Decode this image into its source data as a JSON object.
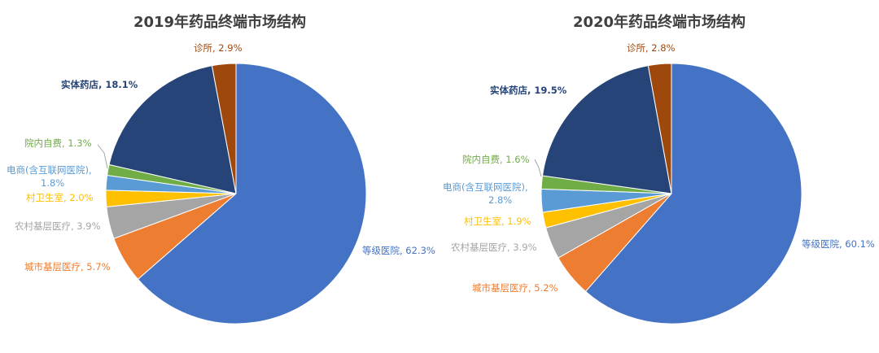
{
  "colors": {
    "hospital": "#4472c4",
    "city": "#ed7d31",
    "rural": "#a5a5a5",
    "village": "#ffc000",
    "ecommerce": "#5b9bd5",
    "inhospital": "#70ad47",
    "pharmacy": "#264478",
    "clinic": "#9e480e",
    "title": "#3f3f3f"
  },
  "chart_data": [
    {
      "type": "pie",
      "title": "2019年药品终端市场结构",
      "slices": [
        {
          "key": "hospital",
          "name": "等级医院",
          "value": 62.3,
          "label": "62.3%"
        },
        {
          "key": "city",
          "name": "城市基层医疗",
          "value": 5.7,
          "label": "5.7%"
        },
        {
          "key": "rural",
          "name": "农村基层医疗",
          "value": 3.9,
          "label": "3.9%"
        },
        {
          "key": "village",
          "name": "村卫生室",
          "value": 2.0,
          "label": "2.0%"
        },
        {
          "key": "ecommerce",
          "name": "电商(含互联网医院)",
          "value": 1.8,
          "label": "1.8%"
        },
        {
          "key": "inhospital",
          "name": "院内自费",
          "value": 1.3,
          "label": "1.3%"
        },
        {
          "key": "pharmacy",
          "name": "实体药店",
          "value": 18.1,
          "label": "18.1%"
        },
        {
          "key": "clinic",
          "name": "诊所",
          "value": 2.9,
          "label": "2.9%"
        }
      ]
    },
    {
      "type": "pie",
      "title": "2020年药品终端市场结构",
      "slices": [
        {
          "key": "hospital",
          "name": "等级医院",
          "value": 60.1,
          "label": "60.1%"
        },
        {
          "key": "city",
          "name": "城市基层医疗",
          "value": 5.2,
          "label": "5.2%"
        },
        {
          "key": "rural",
          "name": "农村基层医疗",
          "value": 3.9,
          "label": "3.9%"
        },
        {
          "key": "village",
          "name": "村卫生室",
          "value": 1.9,
          "label": "1.9%"
        },
        {
          "key": "ecommerce",
          "name": "电商(含互联网医院)",
          "value": 2.8,
          "label": "2.8%"
        },
        {
          "key": "inhospital",
          "name": "院内自费",
          "value": 1.6,
          "label": "1.6%"
        },
        {
          "key": "pharmacy",
          "name": "实体药店",
          "value": 19.5,
          "label": "19.5%"
        },
        {
          "key": "clinic",
          "name": "诊所",
          "value": 2.8,
          "label": "2.8%"
        }
      ]
    }
  ]
}
